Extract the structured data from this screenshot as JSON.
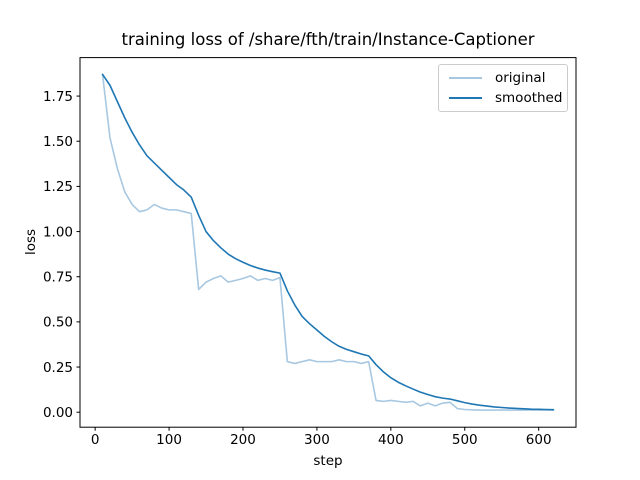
{
  "chart_data": {
    "type": "line",
    "title": "training loss of /share/fth/train/Instance-Captioner",
    "xlabel": "step",
    "ylabel": "loss",
    "xlim": [
      -20.5,
      650.5
    ],
    "ylim": [
      -0.083,
      1.963
    ],
    "grid": false,
    "x_ticks": [
      0,
      100,
      200,
      300,
      400,
      500,
      600
    ],
    "y_ticks": [
      0.0,
      0.25,
      0.5,
      0.75,
      1.0,
      1.25,
      1.5,
      1.75
    ],
    "y_tick_labels": [
      "0.00",
      "0.25",
      "0.50",
      "0.75",
      "1.00",
      "1.25",
      "1.50",
      "1.75"
    ],
    "legend": {
      "position": "upper right",
      "entries": [
        "original",
        "smoothed"
      ]
    },
    "x": [
      10,
      20,
      30,
      40,
      50,
      60,
      70,
      80,
      90,
      100,
      110,
      120,
      130,
      140,
      150,
      160,
      170,
      180,
      190,
      200,
      210,
      220,
      230,
      240,
      250,
      260,
      270,
      280,
      290,
      300,
      310,
      320,
      330,
      340,
      350,
      360,
      370,
      380,
      390,
      400,
      410,
      420,
      430,
      440,
      450,
      460,
      470,
      480,
      490,
      500,
      510,
      520,
      530,
      540,
      550,
      560,
      570,
      580,
      590,
      600,
      610,
      620
    ],
    "series": [
      {
        "name": "original",
        "color": "#a8c8e1",
        "values": [
          1.87,
          1.52,
          1.35,
          1.22,
          1.15,
          1.11,
          1.12,
          1.15,
          1.13,
          1.12,
          1.12,
          1.11,
          1.1,
          0.68,
          0.72,
          0.74,
          0.755,
          0.72,
          0.73,
          0.74,
          0.755,
          0.73,
          0.74,
          0.73,
          0.745,
          0.28,
          0.27,
          0.28,
          0.29,
          0.28,
          0.28,
          0.28,
          0.29,
          0.28,
          0.28,
          0.27,
          0.28,
          0.065,
          0.06,
          0.065,
          0.06,
          0.055,
          0.06,
          0.035,
          0.05,
          0.035,
          0.05,
          0.055,
          0.02,
          0.015,
          0.013,
          0.012,
          0.012,
          0.012,
          0.012,
          0.012,
          0.012,
          0.012,
          0.012,
          0.012,
          0.012,
          0.012
        ]
      },
      {
        "name": "smoothed",
        "color": "#1f77b4",
        "values": [
          1.87,
          1.81,
          1.72,
          1.63,
          1.55,
          1.48,
          1.42,
          1.38,
          1.34,
          1.3,
          1.26,
          1.23,
          1.19,
          1.09,
          1.0,
          0.95,
          0.91,
          0.875,
          0.85,
          0.83,
          0.812,
          0.798,
          0.787,
          0.778,
          0.77,
          0.672,
          0.594,
          0.53,
          0.49,
          0.455,
          0.42,
          0.39,
          0.365,
          0.348,
          0.335,
          0.322,
          0.312,
          0.263,
          0.223,
          0.191,
          0.166,
          0.146,
          0.128,
          0.111,
          0.098,
          0.086,
          0.078,
          0.073,
          0.063,
          0.053,
          0.045,
          0.039,
          0.034,
          0.029,
          0.026,
          0.023,
          0.021,
          0.019,
          0.017,
          0.016,
          0.015,
          0.014
        ]
      }
    ]
  }
}
